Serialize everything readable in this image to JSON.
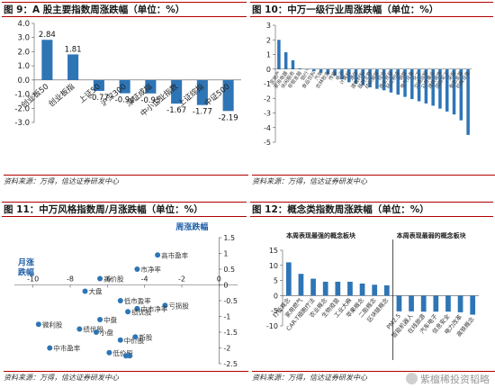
{
  "panels": [
    {
      "title": "图 9：A 股主要指数周涨跌幅（单位：%）",
      "source": "资料来源：万得，信达证券研发中心"
    },
    {
      "title": "图 10：中万一级行业周涨跌幅（单位：%）",
      "source": "资料来源：万得，信达证券研发中心"
    },
    {
      "title": "图 11：中万风格指数周/月涨跌幅（单位：%）",
      "source": "资料来源：万得，信达证券研发中心"
    },
    {
      "title": "图 12：概念类指数周涨跌幅（单位：%）",
      "source": "资料来源：万得，信达证券研发中心"
    }
  ],
  "watermark": "紫檀稀投资韬略",
  "chart_data": [
    {
      "type": "bar",
      "categories": [
        "创业板50",
        "创业板指",
        "上证50",
        "沪深300",
        "深证成指",
        "中小企业指数",
        "上证综指",
        "中证500"
      ],
      "values": [
        2.84,
        1.81,
        -0.77,
        -0.94,
        -0.95,
        -1.67,
        -1.77,
        -2.19
      ],
      "value_labels": [
        "2.84",
        "1.81",
        "-0.77",
        "-0.94",
        "-0.95",
        "-1.67",
        "-1.77",
        "-2.19"
      ],
      "ylim": [
        -3,
        4
      ],
      "yticks": [
        -3,
        -2,
        -1,
        0,
        1,
        2,
        3,
        4
      ],
      "ytick_labels": [
        "-3.0",
        "-2.0",
        "-1.0",
        "0.0",
        "1.0",
        "2.0",
        "3.0",
        "4.0"
      ],
      "color": "#2e75b6"
    },
    {
      "type": "bar",
      "categories": [
        "房地产",
        "家用电器",
        "休闲服务",
        "非银金融",
        "银行",
        "食品饮料",
        "汽车",
        "农林牧渔",
        "传媒",
        "电子",
        "计算机",
        "通信",
        "建筑材料",
        "医药生物",
        "纺织服装",
        "综合",
        "商业贸易",
        "轻工制造",
        "钢铁",
        "电气设备",
        "化工",
        "交通运输",
        "公用事业",
        "建筑装饰",
        "国防军工",
        "采掘",
        "有色金属",
        "机械设备"
      ],
      "values": [
        2.0,
        1.15,
        0.6,
        0.05,
        -0.05,
        -0.15,
        -0.25,
        -0.35,
        -0.45,
        -0.7,
        -0.9,
        -1.0,
        -1.1,
        -1.25,
        -1.35,
        -1.45,
        -1.6,
        -1.75,
        -1.9,
        -2.05,
        -2.2,
        -2.35,
        -2.5,
        -2.7,
        -2.9,
        -3.1,
        -3.5,
        -4.5
      ],
      "ylim": [
        -5,
        3
      ],
      "yticks": [
        -5,
        -4,
        -3,
        -2,
        -1,
        0,
        1,
        2,
        3
      ],
      "ytick_labels": [
        "-5",
        "-4",
        "-3",
        "-2",
        "-1",
        "0",
        "1",
        "2",
        "3"
      ],
      "color": "#2e75b6"
    },
    {
      "type": "scatter",
      "xlabel": "月涨跌幅",
      "ylabel": "周涨跌幅",
      "xlim": [
        -11,
        1
      ],
      "ylim": [
        -2.5,
        1.5
      ],
      "xticks": [
        -10,
        -8,
        -6,
        -4,
        -2,
        0
      ],
      "yticks": [
        -2.5,
        -2,
        -1.5,
        -1,
        -0.5,
        0,
        0.5,
        1,
        1.5
      ],
      "ytick_labels": [
        "-2.5",
        "-2",
        "-1.5",
        "-1",
        "-0.5",
        "0",
        "0.5",
        "1",
        "1.5"
      ],
      "points": [
        {
          "label": "高市盈率",
          "x": -3.3,
          "y": 0.95
        },
        {
          "label": "高价股",
          "x": -6.4,
          "y": 0.2
        },
        {
          "label": "市净率",
          "x": -4.4,
          "y": 0.5
        },
        {
          "label": "大盘",
          "x": -7.2,
          "y": -0.2
        },
        {
          "label": "低市盈率",
          "x": -5.3,
          "y": -0.5
        },
        {
          "label": "亏损股",
          "x": -2.9,
          "y": -0.65
        },
        {
          "label": "中市净率",
          "x": -4.4,
          "y": -0.75
        },
        {
          "label": "绩优股",
          "x": -4.9,
          "y": -0.85
        },
        {
          "label": "中盘",
          "x": -6.4,
          "y": -1.1
        },
        {
          "label": "微利股",
          "x": -9.7,
          "y": -1.25
        },
        {
          "label": "绩优股",
          "x": -7.5,
          "y": -1.4
        },
        {
          "label": "小盘",
          "x": -6.6,
          "y": -1.5
        },
        {
          "label": "中价股",
          "x": -5.3,
          "y": -1.75
        },
        {
          "label": "新股",
          "x": -4.5,
          "y": -1.65
        },
        {
          "label": "中市盈率",
          "x": -9.1,
          "y": -2.0
        },
        {
          "label": "低价股",
          "x": -5.9,
          "y": -2.15
        },
        {
          "label": "",
          "x": -4.8,
          "y": -2.25
        },
        {
          "label": "",
          "x": -5.0,
          "y": -2.25
        }
      ],
      "color": "#2e75b6"
    },
    {
      "type": "bar",
      "annotations": [
        "本周表现最强的概念板块",
        "本周表现最弱的概念板块"
      ],
      "categories": [
        "打板概念",
        "家用燃气",
        "CAR-T细胞疗法",
        "农业概念",
        "生物疫苗",
        "工业大麻",
        "苹果概念",
        "二胎概念",
        "区块链概念",
        "PM2.5",
        "智能机器人",
        "在线旅游",
        "汽车电子",
        "信息安全",
        "电力改革",
        "高铁概念"
      ],
      "values": [
        11,
        7.2,
        5.6,
        4.6,
        4.6,
        4.6,
        4.0,
        3.6,
        3.4,
        -5.2,
        -5.2,
        -5.3,
        -5.3,
        -5.3,
        -5.5,
        -6.3
      ],
      "ylim": [
        -10,
        15
      ],
      "yticks": [
        -10,
        -5,
        0,
        5,
        10,
        15
      ],
      "ytick_labels": [
        "-10",
        "-5",
        "0",
        "5",
        "10",
        "15"
      ],
      "color": "#2e75b6"
    }
  ]
}
